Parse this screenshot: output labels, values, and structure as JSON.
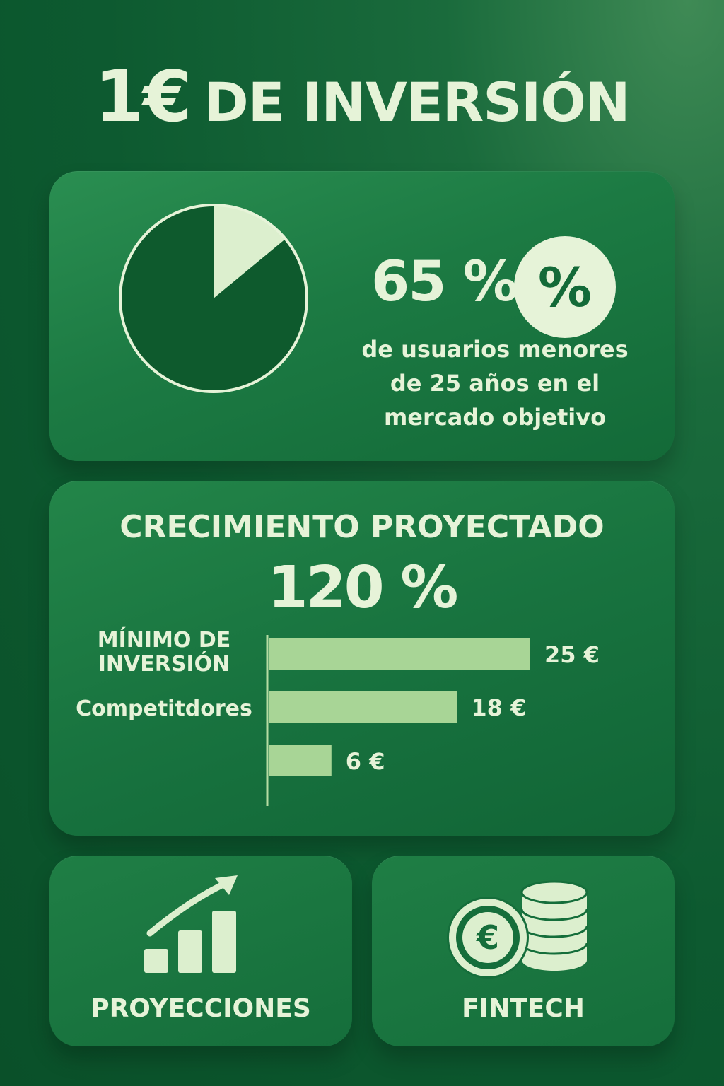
{
  "header": {
    "title_number": "1€",
    "title_rest": "DE INVERSIÓN"
  },
  "stat": {
    "value": "65 %",
    "badge": "%",
    "description": "de usuarios menores de 25 años en el mercado objetivo"
  },
  "growth": {
    "title": "CRECIMIENTO PROYECTADO",
    "value": "120 %"
  },
  "chart_data": [
    {
      "type": "pie",
      "values": [
        86,
        14
      ],
      "colors": [
        "#0e5a2d",
        "#dcefce"
      ],
      "outline": "#e6f3d8"
    },
    {
      "type": "bar",
      "orientation": "horizontal",
      "categories": [
        "MÍNIMO DE INVERSIÓN",
        "Competitdores",
        ""
      ],
      "values": [
        25,
        18,
        6
      ],
      "value_labels": [
        "25 €",
        "18 €",
        "6 €"
      ],
      "color": "#a8d596",
      "xlim": [
        0,
        25
      ]
    }
  ],
  "cards": {
    "projections_label": "PROYECCIONES",
    "fintech_label": "FINTECH"
  },
  "icons": {
    "projections": "growth-chart-icon",
    "fintech": "euro-coins-icon"
  },
  "colors": {
    "accent": "#e6f3d8",
    "bar": "#a8d596",
    "dark": "#0e5a2d"
  }
}
